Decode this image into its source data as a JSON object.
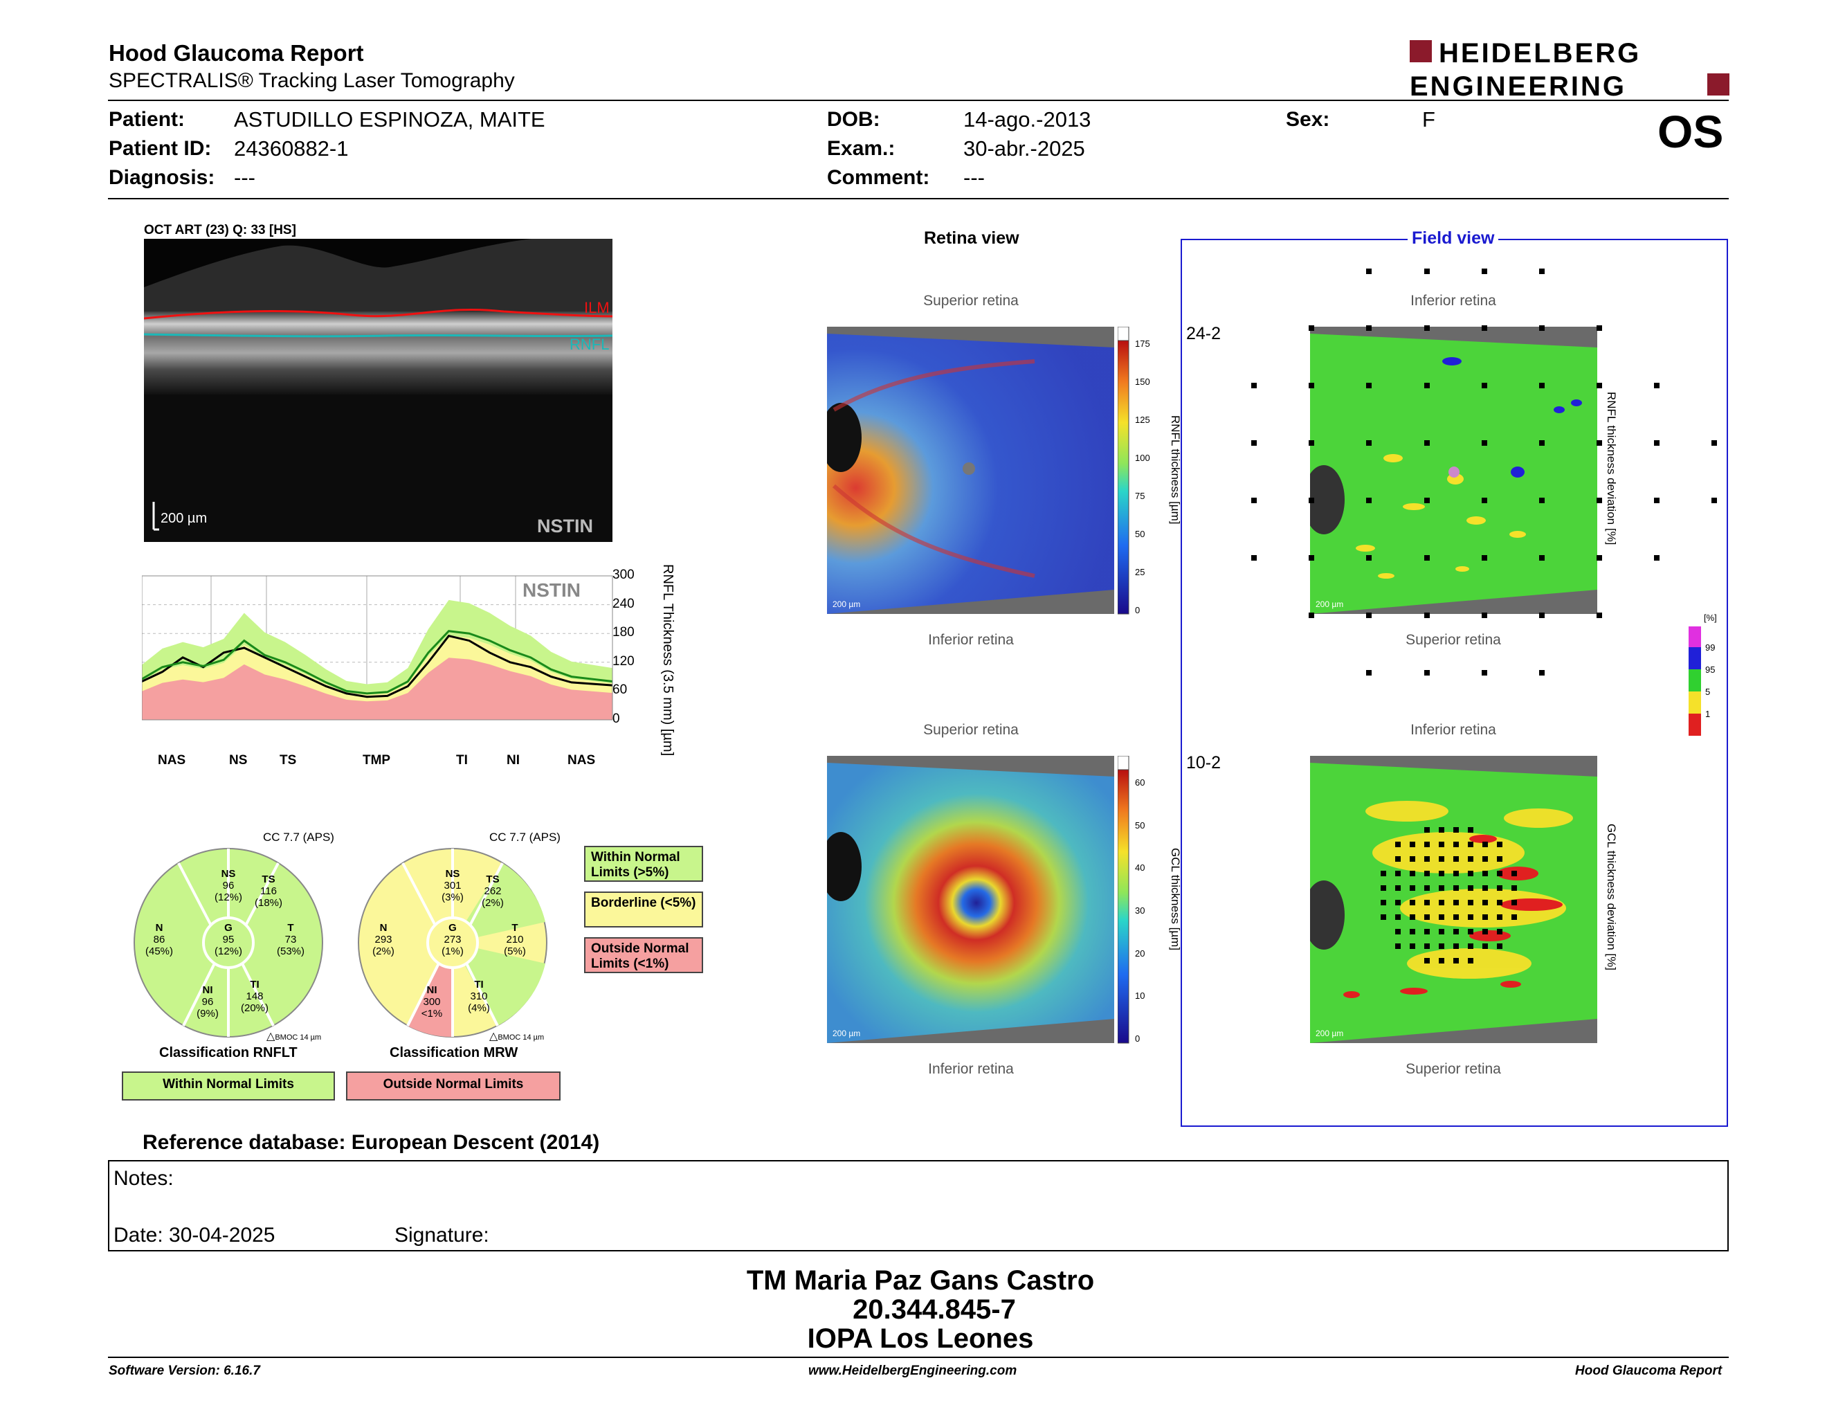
{
  "header": {
    "title": "Hood Glaucoma Report",
    "subtitle": "SPECTRALIS® Tracking Laser Tomography",
    "logo_line1": "HEIDELBERG",
    "logo_line2": "ENGINEERING",
    "eye": "OS"
  },
  "patient": {
    "patient_label": "Patient:",
    "patient_value": "ASTUDILLO ESPINOZA, MAITE",
    "id_label": "Patient ID:",
    "id_value": "24360882-1",
    "diag_label": "Diagnosis:",
    "diag_value": "---",
    "dob_label": "DOB:",
    "dob_value": "14-ago.-2013",
    "exam_label": "Exam.:",
    "exam_value": "30-abr.-2025",
    "comment_label": "Comment:",
    "comment_value": "---",
    "sex_label": "Sex:",
    "sex_value": "F"
  },
  "oct": {
    "title": "OCT ART (23) Q: 33 [HS]",
    "ilm": "ILM",
    "rnfl": "RNFL",
    "scale": "200 µm",
    "sector_label": "NSTIN"
  },
  "profile_chart": {
    "nstin": "NSTIN",
    "ylabel": "RNFL Thickness (3.5 mm) [µm]",
    "yticks": [
      "300",
      "240",
      "180",
      "120",
      "60",
      "0"
    ],
    "xlabels": [
      "NAS",
      "NS",
      "TS",
      "TMP",
      "TI",
      "NI",
      "NAS"
    ]
  },
  "chart_data": {
    "type": "line",
    "ylabel": "RNFL Thickness (3.5 mm) [µm]",
    "ylim": [
      0,
      300
    ],
    "xlabels": [
      "NAS",
      "NS",
      "TS",
      "TMP",
      "TI",
      "NI",
      "NAS"
    ],
    "series": [
      {
        "values": [
          80,
          100,
          130,
          110,
          140,
          150,
          130,
          110,
          90,
          70,
          55,
          48,
          50,
          70,
          120,
          175,
          165,
          140,
          120,
          110,
          90,
          78,
          75,
          72
        ]
      },
      {
        "values": [
          85,
          110,
          120,
          112,
          125,
          165,
          135,
          120,
          100,
          78,
          60,
          55,
          58,
          80,
          140,
          185,
          180,
          165,
          145,
          130,
          105,
          90,
          85,
          80
        ]
      }
    ],
    "grid": true
  },
  "rnflt_circle": {
    "cc": "CC 7.7 (APS)",
    "sectors": [
      {
        "name": "NS",
        "value": "96",
        "pct": "(12%)"
      },
      {
        "name": "TS",
        "value": "116",
        "pct": "(18%)"
      },
      {
        "name": "N",
        "value": "86",
        "pct": "(45%)"
      },
      {
        "name": "G",
        "value": "95",
        "pct": "(12%)"
      },
      {
        "name": "T",
        "value": "73",
        "pct": "(53%)"
      },
      {
        "name": "NI",
        "value": "96",
        "pct": "(9%)"
      },
      {
        "name": "TI",
        "value": "148",
        "pct": "(20%)"
      }
    ],
    "bmo": "BMOC 14 µm",
    "classification": "Classification RNFLT",
    "result": "Within Normal Limits"
  },
  "mrw_circle": {
    "cc": "CC 7.7 (APS)",
    "sectors": [
      {
        "name": "NS",
        "value": "301",
        "pct": "(3%)"
      },
      {
        "name": "TS",
        "value": "262",
        "pct": "(2%)"
      },
      {
        "name": "N",
        "value": "293",
        "pct": "(2%)"
      },
      {
        "name": "G",
        "value": "273",
        "pct": "(1%)"
      },
      {
        "name": "T",
        "value": "210",
        "pct": "(5%)"
      },
      {
        "name": "NI",
        "value": "300",
        "pct": "<1%"
      },
      {
        "name": "TI",
        "value": "310",
        "pct": "(4%)"
      }
    ],
    "bmo": "BMOC 14 µm",
    "classification": "Classification MRW",
    "result": "Outside Normal Limits"
  },
  "legend": {
    "within": "Within Normal Limits (>5%)",
    "borderline": "Borderline (<5%)",
    "outside": "Outside Normal Limits (<1%)",
    "colors": {
      "within": "#c8f58c",
      "borderline": "#fbf79a",
      "outside": "#f5a0a0"
    }
  },
  "retina": {
    "title": "Retina view",
    "superior": "Superior retina",
    "inferior": "Inferior retina",
    "rnfl_axis": "RNFL thickness [µm]",
    "rnfl_ticks": [
      "175",
      "150",
      "125",
      "100",
      "75",
      "50",
      "25",
      "0"
    ],
    "gcl_axis": "GCL thickness [µm]",
    "gcl_ticks": [
      "60",
      "50",
      "40",
      "30",
      "20",
      "10",
      "0"
    ],
    "scale": "200 µm"
  },
  "field": {
    "title": "Field view",
    "inferior": "Inferior retina",
    "superior": "Superior retina",
    "p242": "24-2",
    "p102": "10-2",
    "rnfl_dev": "RNFL thickness deviation [%]",
    "gcl_dev": "GCL thickness deviation [%]",
    "pct_title": "[%]",
    "pct_ticks": [
      "99",
      "95",
      "5",
      "1"
    ],
    "scale": "200 µm"
  },
  "reference": "Reference database: European Descent (2014)",
  "notes": {
    "label": "Notes:",
    "date": "Date: 30-04-2025",
    "signature": "Signature:"
  },
  "signer": {
    "name": "TM Maria Paz Gans Castro",
    "rut": "20.344.845-7",
    "org": "IOPA Los Leones"
  },
  "footer": {
    "version": "Software Version: 6.16.7",
    "url": "www.HeidelbergEngineering.com",
    "report": "Hood Glaucoma Report"
  }
}
